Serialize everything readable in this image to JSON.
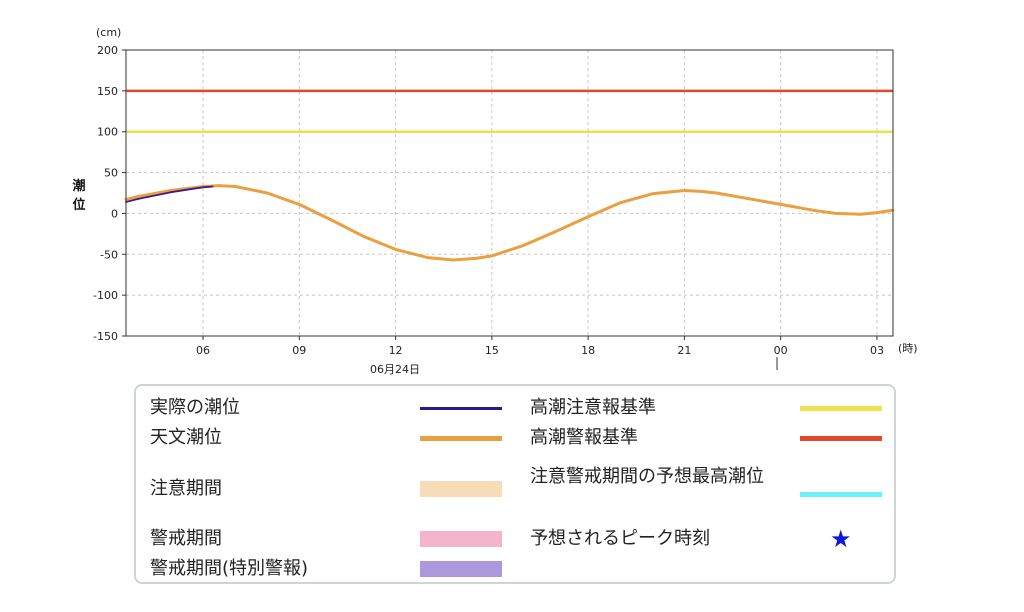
{
  "chart_data": {
    "type": "line",
    "unit_label": "(cm)",
    "ylabel": "潮位",
    "x_unit_label": "(時)",
    "date_label": "06月24日",
    "ylim": [
      -150,
      200
    ],
    "yticks": [
      -150,
      -100,
      -50,
      0,
      50,
      100,
      150,
      200
    ],
    "x_ticks": [
      {
        "hour": 6,
        "label": "06"
      },
      {
        "hour": 9,
        "label": "09"
      },
      {
        "hour": 12,
        "label": "12"
      },
      {
        "hour": 15,
        "label": "15"
      },
      {
        "hour": 18,
        "label": "18"
      },
      {
        "hour": 21,
        "label": "21"
      },
      {
        "hour": 24,
        "label": "00"
      },
      {
        "hour": 27,
        "label": "03"
      }
    ],
    "xlim_hours": [
      3.6,
      27.5
    ],
    "grid": true,
    "series": [
      {
        "name": "実際の潮位",
        "color": "#3a1a8c",
        "x_hours": [
          3.6,
          4.0,
          4.5,
          5.0,
          5.5,
          6.0,
          6.3
        ],
        "values": [
          14,
          18,
          22,
          26,
          29,
          32,
          33
        ]
      },
      {
        "name": "天文潮位",
        "color": "#e8a040",
        "x_hours": [
          3.6,
          4.0,
          5.0,
          6.0,
          6.5,
          7.0,
          8.0,
          9.0,
          10.0,
          11.0,
          12.0,
          13.0,
          13.8,
          14.5,
          15.0,
          16.0,
          17.0,
          18.0,
          19.0,
          20.0,
          21.0,
          21.5,
          22.0,
          23.0,
          24.0,
          25.0,
          25.7,
          26.5,
          27.0,
          27.5
        ],
        "values": [
          17,
          21,
          28,
          33,
          34,
          33,
          25,
          11,
          -8,
          -28,
          -44,
          -54,
          -57,
          -55,
          -52,
          -39,
          -22,
          -4,
          13,
          24,
          28,
          27,
          25,
          18,
          11,
          4,
          0,
          -1,
          1,
          4
        ]
      }
    ],
    "thresholds": [
      {
        "name": "高潮注意報基準",
        "value": 100,
        "color": "#f0e050"
      },
      {
        "name": "高潮警報基準",
        "value": 150,
        "color": "#e04a2a"
      }
    ]
  },
  "legend": {
    "left": [
      {
        "label": "実際の潮位",
        "color": "#2a1890",
        "kind": "line"
      },
      {
        "label": "天文潮位",
        "color": "#e8a040",
        "kind": "line"
      },
      {
        "label": "注意期間",
        "color": "#f8dcb8",
        "kind": "band"
      },
      {
        "label": "警戒期間",
        "color": "#f4b4cc",
        "kind": "band"
      },
      {
        "label": "警戒期間(特別警報)",
        "color": "#ac98dc",
        "kind": "band"
      }
    ],
    "right": [
      {
        "label": "高潮注意報基準",
        "color": "#f0e050",
        "kind": "line"
      },
      {
        "label": "高潮警報基準",
        "color": "#e04a2a",
        "kind": "line"
      },
      {
        "label": "注意警戒期間の予想最高潮位",
        "color": "#6ef0f8",
        "kind": "line"
      },
      {
        "label": "予想されるピーク時刻",
        "color": "#0a1ad8",
        "kind": "star",
        "icon": "star-icon"
      }
    ]
  }
}
